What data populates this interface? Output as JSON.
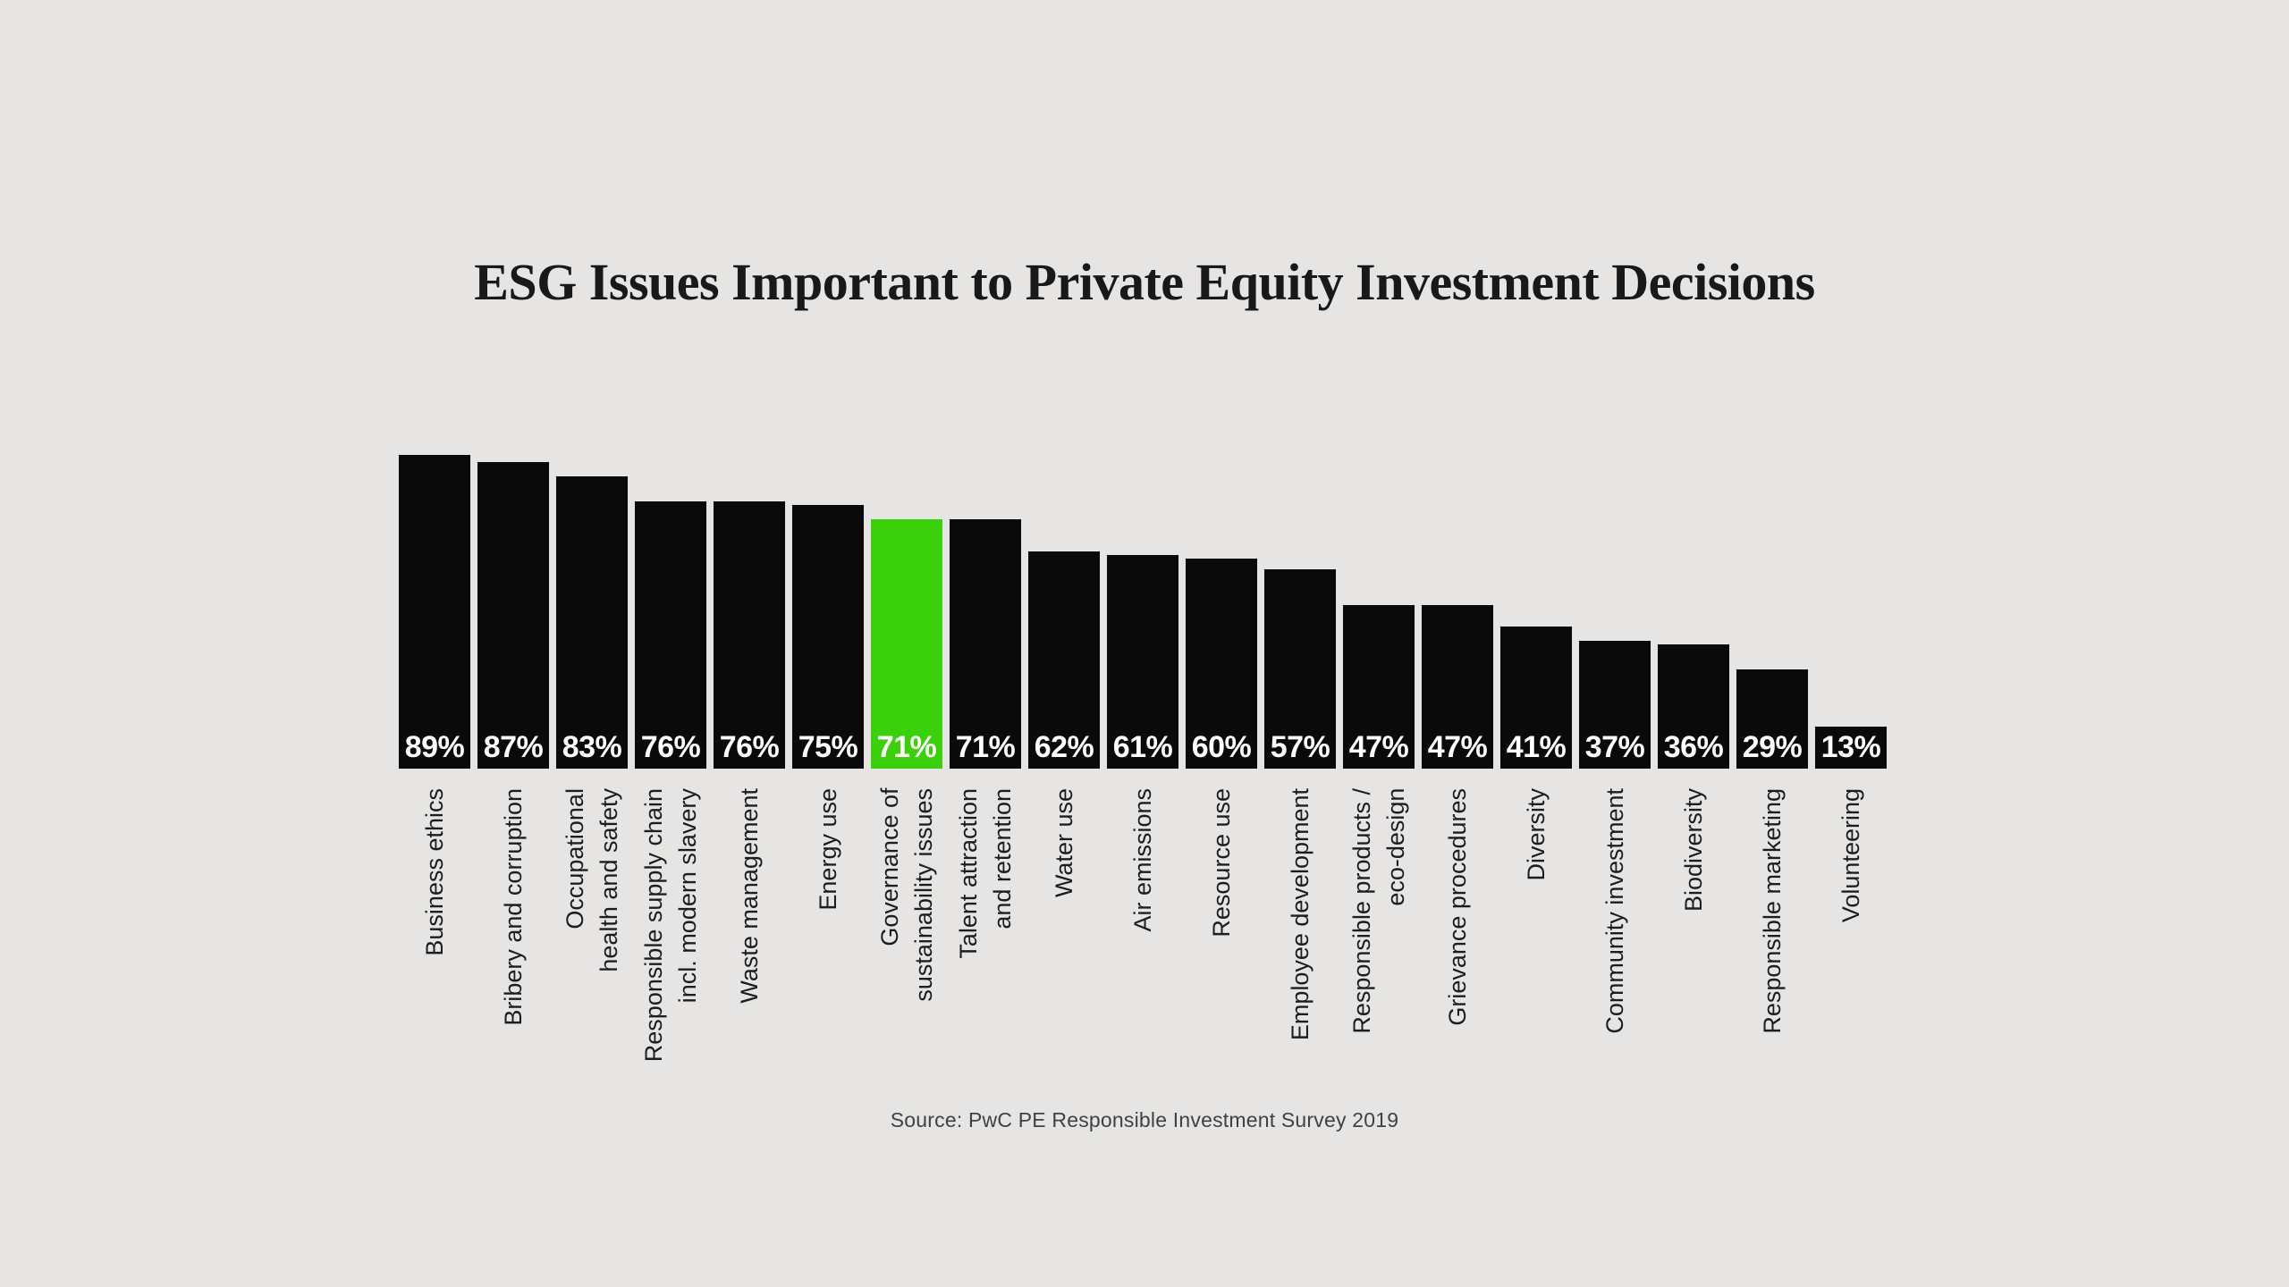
{
  "page": {
    "background": "#e6e5e3"
  },
  "chart_data": {
    "type": "bar",
    "title": "ESG Issues Important to Private Equity Investment Decisions",
    "source": "Source: PwC PE Responsible Investment Survey 2019",
    "categories": [
      "Business ethics",
      "Bribery and corruption",
      "Occupational\nhealth and safety",
      "Responsible supply chain\nincl. modern slavery",
      "Waste management",
      "Energy use",
      "Governance of\nsustainability issues",
      "Talent attraction\nand retention",
      "Water use",
      "Air emissions",
      "Resource use",
      "Employee development",
      "Responsible products /\neco-design",
      "Grievance procedures",
      "Diversity",
      "Community investment",
      "Biodiversity",
      "Responsible marketing",
      "Volunteering"
    ],
    "values": [
      89,
      87,
      83,
      76,
      76,
      75,
      71,
      71,
      62,
      61,
      60,
      57,
      47,
      47,
      41,
      37,
      36,
      29,
      13
    ],
    "value_suffix": "%",
    "value_labels": [
      "89%",
      "87%",
      "83%",
      "76%",
      "76%",
      "75%",
      "71%",
      "71%",
      "62%",
      "61%",
      "60%",
      "57%",
      "47%",
      "47%",
      "41%",
      "37%",
      "36%",
      "29%",
      "13%"
    ],
    "highlight_index": 6,
    "colors": {
      "bar": "#0a0a0a",
      "highlight": "#3ad10b",
      "value_label": "#ffffff",
      "category_label": "#1d1d1d"
    },
    "xlabel": "",
    "ylabel": "",
    "ylim": [
      0,
      100
    ],
    "grid": false,
    "legend": false,
    "value_labels_position": "inside-bottom",
    "orientation": "vertical"
  }
}
